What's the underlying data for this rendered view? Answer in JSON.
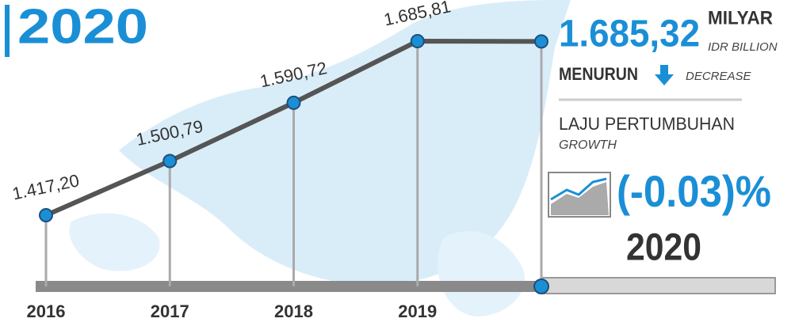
{
  "chart_data": {
    "type": "line",
    "title": "2020",
    "categories": [
      "2016",
      "2017",
      "2018",
      "2019",
      null
    ],
    "series": [
      {
        "color": "#555555",
        "values": [
          1417.2,
          1500.79,
          1590.72,
          1685.81,
          1685.32
        ],
        "value_labels": [
          "1.417,20",
          "1.500,79",
          "1.590,72",
          "1.685,81",
          "1.685,32"
        ]
      }
    ],
    "panel": {
      "unit": "MILYAR",
      "unit_en": "IDR BILLION",
      "trend": "MENURUN",
      "trend_en": "DECREASE",
      "growth_title": "LAJU PERTUMBUHAN",
      "growth_title_en": "GROWTH",
      "growth": "(-0.03)%",
      "year": "2020"
    }
  }
}
